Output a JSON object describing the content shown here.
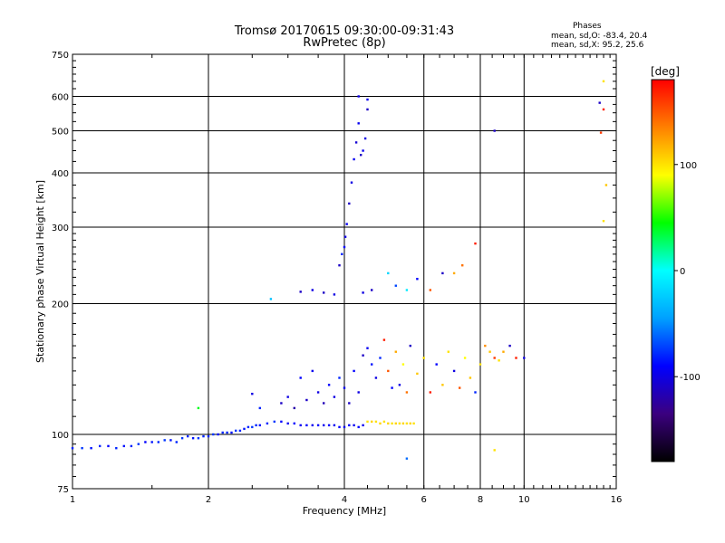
{
  "chart_data": {
    "type": "scatter",
    "title": "Tromsø 20170615 09:30:00-09:31:43",
    "subtitle": "RwPretec (8p)",
    "xlabel": "Frequency [MHz]",
    "ylabel": "Stationary phase Virtual Height [km]",
    "x_scale": "log",
    "y_scale": "log",
    "xlim": [
      1,
      16
    ],
    "ylim": [
      75,
      750
    ],
    "x_ticks": [
      1,
      2,
      4,
      6,
      8,
      10,
      16
    ],
    "y_ticks": [
      75,
      100,
      200,
      300,
      400,
      500,
      600,
      750
    ],
    "grid": true,
    "phase_stats": {
      "heading": "Phases",
      "line1": "mean, sd,O: -83.4, 20.4",
      "line2": "mean, sd,X:  95.2, 25.6"
    },
    "colorbar": {
      "label": "[deg]",
      "ticks": [
        "100",
        "0",
        "-100"
      ],
      "tick_values": [
        100,
        0,
        -100
      ],
      "range": [
        -180,
        180
      ],
      "colors": [
        "#000000",
        "#3b007f",
        "#0000ff",
        "#00a0ff",
        "#00ffff",
        "#00ff00",
        "#ffff00",
        "#ff8000",
        "#ff0000"
      ]
    },
    "series": [
      {
        "points": [
          {
            "x": 1.0,
            "y": 93,
            "p": -80
          },
          {
            "x": 1.05,
            "y": 93,
            "p": -75
          },
          {
            "x": 1.1,
            "y": 93,
            "p": -85
          },
          {
            "x": 1.15,
            "y": 94,
            "p": -80
          },
          {
            "x": 1.2,
            "y": 94,
            "p": -90
          },
          {
            "x": 1.25,
            "y": 93,
            "p": -80
          },
          {
            "x": 1.3,
            "y": 94,
            "p": -85
          },
          {
            "x": 1.35,
            "y": 94,
            "p": -80
          },
          {
            "x": 1.4,
            "y": 95,
            "p": -75
          },
          {
            "x": 1.45,
            "y": 96,
            "p": -90
          },
          {
            "x": 1.5,
            "y": 96,
            "p": -85
          },
          {
            "x": 1.55,
            "y": 96,
            "p": -80
          },
          {
            "x": 1.6,
            "y": 97,
            "p": -75
          },
          {
            "x": 1.65,
            "y": 97,
            "p": -85
          },
          {
            "x": 1.7,
            "y": 96,
            "p": -80
          },
          {
            "x": 1.75,
            "y": 98,
            "p": -75
          },
          {
            "x": 1.8,
            "y": 99,
            "p": -80
          },
          {
            "x": 1.85,
            "y": 98,
            "p": -85
          },
          {
            "x": 1.9,
            "y": 98,
            "p": -75
          },
          {
            "x": 1.95,
            "y": 99,
            "p": -80
          },
          {
            "x": 2.0,
            "y": 99,
            "p": -80
          },
          {
            "x": 2.05,
            "y": 100,
            "p": -75
          },
          {
            "x": 2.1,
            "y": 100,
            "p": -85
          },
          {
            "x": 2.15,
            "y": 101,
            "p": -80
          },
          {
            "x": 2.2,
            "y": 101,
            "p": -80
          },
          {
            "x": 2.25,
            "y": 101,
            "p": -85
          },
          {
            "x": 2.3,
            "y": 102,
            "p": -75
          },
          {
            "x": 2.35,
            "y": 102,
            "p": -80
          },
          {
            "x": 2.4,
            "y": 103,
            "p": -85
          },
          {
            "x": 2.45,
            "y": 104,
            "p": -80
          },
          {
            "x": 2.5,
            "y": 104,
            "p": -75
          },
          {
            "x": 2.55,
            "y": 105,
            "p": -80
          },
          {
            "x": 2.6,
            "y": 105,
            "p": -85
          },
          {
            "x": 2.7,
            "y": 106,
            "p": -80
          },
          {
            "x": 2.8,
            "y": 107,
            "p": -75
          },
          {
            "x": 2.9,
            "y": 107,
            "p": -90
          },
          {
            "x": 3.0,
            "y": 106,
            "p": -95
          },
          {
            "x": 3.1,
            "y": 106,
            "p": -90
          },
          {
            "x": 3.2,
            "y": 105,
            "p": -95
          },
          {
            "x": 3.3,
            "y": 105,
            "p": -90
          },
          {
            "x": 3.4,
            "y": 105,
            "p": -95
          },
          {
            "x": 3.5,
            "y": 105,
            "p": -90
          },
          {
            "x": 3.6,
            "y": 105,
            "p": -95
          },
          {
            "x": 3.7,
            "y": 105,
            "p": -90
          },
          {
            "x": 3.8,
            "y": 105,
            "p": -95
          },
          {
            "x": 3.9,
            "y": 104,
            "p": -90
          },
          {
            "x": 4.0,
            "y": 104,
            "p": -95
          },
          {
            "x": 4.1,
            "y": 105,
            "p": -90
          },
          {
            "x": 4.2,
            "y": 105,
            "p": -95
          },
          {
            "x": 4.3,
            "y": 104,
            "p": -90
          },
          {
            "x": 4.4,
            "y": 105,
            "p": -95
          },
          {
            "x": 4.5,
            "y": 107,
            "p": 100
          },
          {
            "x": 4.6,
            "y": 107,
            "p": 105
          },
          {
            "x": 4.7,
            "y": 107,
            "p": 100
          },
          {
            "x": 4.8,
            "y": 106,
            "p": 105
          },
          {
            "x": 4.9,
            "y": 107,
            "p": 100
          },
          {
            "x": 5.0,
            "y": 106,
            "p": 105
          },
          {
            "x": 5.1,
            "y": 106,
            "p": 100
          },
          {
            "x": 5.2,
            "y": 106,
            "p": 105
          },
          {
            "x": 5.3,
            "y": 106,
            "p": 100
          },
          {
            "x": 5.4,
            "y": 106,
            "p": 105
          },
          {
            "x": 5.5,
            "y": 106,
            "p": 100
          },
          {
            "x": 5.6,
            "y": 106,
            "p": 105
          },
          {
            "x": 5.7,
            "y": 106,
            "p": 100
          },
          {
            "x": 1.9,
            "y": 115,
            "p": 40
          },
          {
            "x": 2.5,
            "y": 124,
            "p": -100
          },
          {
            "x": 2.6,
            "y": 115,
            "p": -80
          },
          {
            "x": 2.9,
            "y": 118,
            "p": -110
          },
          {
            "x": 3.0,
            "y": 122,
            "p": -100
          },
          {
            "x": 3.1,
            "y": 115,
            "p": -120
          },
          {
            "x": 3.2,
            "y": 135,
            "p": -90
          },
          {
            "x": 3.3,
            "y": 120,
            "p": -110
          },
          {
            "x": 3.4,
            "y": 140,
            "p": -95
          },
          {
            "x": 3.5,
            "y": 125,
            "p": -100
          },
          {
            "x": 3.6,
            "y": 118,
            "p": -115
          },
          {
            "x": 3.7,
            "y": 130,
            "p": -90
          },
          {
            "x": 3.8,
            "y": 122,
            "p": -100
          },
          {
            "x": 3.9,
            "y": 135,
            "p": -80
          },
          {
            "x": 4.0,
            "y": 128,
            "p": -95
          },
          {
            "x": 4.1,
            "y": 118,
            "p": -110
          },
          {
            "x": 4.2,
            "y": 140,
            "p": -90
          },
          {
            "x": 4.3,
            "y": 125,
            "p": -100
          },
          {
            "x": 4.4,
            "y": 152,
            "p": -110
          },
          {
            "x": 4.5,
            "y": 158,
            "p": -95
          },
          {
            "x": 4.6,
            "y": 145,
            "p": -85
          },
          {
            "x": 4.7,
            "y": 135,
            "p": -100
          },
          {
            "x": 4.8,
            "y": 150,
            "p": -80
          },
          {
            "x": 4.9,
            "y": 165,
            "p": 170
          },
          {
            "x": 5.0,
            "y": 140,
            "p": 150
          },
          {
            "x": 5.1,
            "y": 128,
            "p": -90
          },
          {
            "x": 5.2,
            "y": 155,
            "p": 120
          },
          {
            "x": 5.3,
            "y": 130,
            "p": -100
          },
          {
            "x": 5.4,
            "y": 145,
            "p": 90
          },
          {
            "x": 5.5,
            "y": 125,
            "p": 140
          },
          {
            "x": 5.6,
            "y": 160,
            "p": -110
          },
          {
            "x": 5.8,
            "y": 138,
            "p": 110
          },
          {
            "x": 6.0,
            "y": 150,
            "p": 100
          },
          {
            "x": 6.2,
            "y": 125,
            "p": 170
          },
          {
            "x": 6.4,
            "y": 145,
            "p": -90
          },
          {
            "x": 6.6,
            "y": 130,
            "p": 110
          },
          {
            "x": 6.8,
            "y": 155,
            "p": 100
          },
          {
            "x": 7.0,
            "y": 140,
            "p": -100
          },
          {
            "x": 7.2,
            "y": 128,
            "p": 150
          },
          {
            "x": 7.4,
            "y": 150,
            "p": 90
          },
          {
            "x": 7.6,
            "y": 135,
            "p": 110
          },
          {
            "x": 7.8,
            "y": 125,
            "p": -80
          },
          {
            "x": 8.0,
            "y": 145,
            "p": 100
          },
          {
            "x": 8.2,
            "y": 160,
            "p": 130
          },
          {
            "x": 8.4,
            "y": 155,
            "p": 110
          },
          {
            "x": 8.6,
            "y": 150,
            "p": 160
          },
          {
            "x": 8.8,
            "y": 148,
            "p": 100
          },
          {
            "x": 9.0,
            "y": 155,
            "p": 120
          },
          {
            "x": 9.3,
            "y": 160,
            "p": -110
          },
          {
            "x": 9.6,
            "y": 150,
            "p": 170
          },
          {
            "x": 10.0,
            "y": 150,
            "p": -100
          },
          {
            "x": 3.2,
            "y": 213,
            "p": -110
          },
          {
            "x": 3.4,
            "y": 215,
            "p": -100
          },
          {
            "x": 3.6,
            "y": 212,
            "p": -110
          },
          {
            "x": 3.8,
            "y": 210,
            "p": -100
          },
          {
            "x": 3.9,
            "y": 245,
            "p": -110
          },
          {
            "x": 3.95,
            "y": 260,
            "p": -80
          },
          {
            "x": 4.0,
            "y": 270,
            "p": -90
          },
          {
            "x": 4.02,
            "y": 285,
            "p": -100
          },
          {
            "x": 4.05,
            "y": 305,
            "p": -95
          },
          {
            "x": 4.1,
            "y": 340,
            "p": -110
          },
          {
            "x": 4.15,
            "y": 380,
            "p": -100
          },
          {
            "x": 4.2,
            "y": 430,
            "p": -95
          },
          {
            "x": 4.25,
            "y": 470,
            "p": -105
          },
          {
            "x": 4.3,
            "y": 520,
            "p": -95
          },
          {
            "x": 4.3,
            "y": 600,
            "p": -100
          },
          {
            "x": 4.35,
            "y": 440,
            "p": -110
          },
          {
            "x": 4.4,
            "y": 450,
            "p": -95
          },
          {
            "x": 4.45,
            "y": 480,
            "p": -100
          },
          {
            "x": 4.5,
            "y": 560,
            "p": -110
          },
          {
            "x": 4.5,
            "y": 590,
            "p": -95
          },
          {
            "x": 4.4,
            "y": 212,
            "p": -100
          },
          {
            "x": 4.6,
            "y": 215,
            "p": -110
          },
          {
            "x": 5.0,
            "y": 235,
            "p": -20
          },
          {
            "x": 5.2,
            "y": 220,
            "p": -70
          },
          {
            "x": 5.5,
            "y": 215,
            "p": -10
          },
          {
            "x": 5.8,
            "y": 228,
            "p": -90
          },
          {
            "x": 6.2,
            "y": 215,
            "p": 150
          },
          {
            "x": 6.6,
            "y": 235,
            "p": -110
          },
          {
            "x": 7.0,
            "y": 235,
            "p": 120
          },
          {
            "x": 7.3,
            "y": 245,
            "p": 140
          },
          {
            "x": 7.8,
            "y": 275,
            "p": 170
          },
          {
            "x": 2.75,
            "y": 205,
            "p": -30
          },
          {
            "x": 8.6,
            "y": 500,
            "p": -110
          },
          {
            "x": 8.6,
            "y": 92,
            "p": 100
          },
          {
            "x": 5.5,
            "y": 88,
            "p": -60
          },
          {
            "x": 15.0,
            "y": 650,
            "p": 100
          },
          {
            "x": 14.7,
            "y": 580,
            "p": -110
          },
          {
            "x": 15.0,
            "y": 560,
            "p": 170
          },
          {
            "x": 14.8,
            "y": 495,
            "p": 160
          },
          {
            "x": 15.2,
            "y": 375,
            "p": 110
          },
          {
            "x": 15.0,
            "y": 310,
            "p": 100
          }
        ]
      }
    ]
  }
}
